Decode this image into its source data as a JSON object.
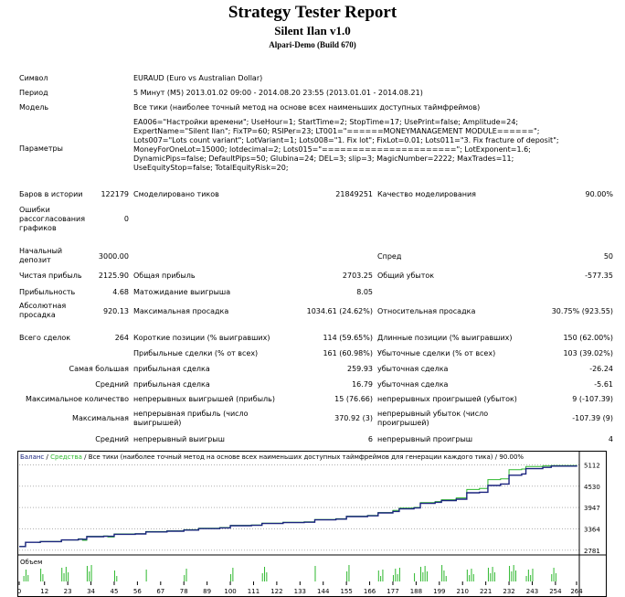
{
  "report": {
    "title": "Strategy Tester Report",
    "subtitle": "Silent Ilan v1.0",
    "build": "Alpari-Demo (Build 670)"
  },
  "info": {
    "symbol_label": "Символ",
    "symbol_value": "EURAUD (Euro vs Australian Dollar)",
    "period_label": "Период",
    "period_value": "5 Минут (M5) 2013.01.02 09:00 - 2014.08.20 23:55 (2013.01.01 - 2014.08.21)",
    "model_label": "Модель",
    "model_value": "Все тики (наиболее точный метод на основе всех наименьших доступных таймфреймов)",
    "params_label": "Параметры",
    "params_value": "EA006=\"Настройки времени\"; UseHour=1; StartTime=2; StopTime=17; UsePrint=false; Amplitude=24; ExpertName=\"Silent Ilan\"; FixTP=60; RSIPer=23; LT001=\"======MONEYMANAGEMENT MODULE======\"; Lots007=\"Lots count variant\"; LotVariant=1; Lots008=\"1. Fix lot\"; FixLot=0.01; Lots011=\"3. Fix fracture of deposit\"; MoneyForOneLot=15000; lotdecimal=2; Lots015=\"======================\"; LotExponent=1.6; DynamicPips=false; DefaultPips=50; Glubina=24; DEL=3; slip=3; MagicNumber=2222; MaxTrades=11; UseEquityStop=false; TotalEquityRisk=20;"
  },
  "stats": {
    "bars_label": "Баров в истории",
    "bars_value": "122179",
    "ticks_label": "Смоделировано тиков",
    "ticks_value": "21849251",
    "quality_label": "Качество моделирования",
    "quality_value": "90.00%",
    "errors_label": "Ошибки рассогласования графиков",
    "errors_value": "0",
    "deposit_label": "Начальный депозит",
    "deposit_value": "3000.00",
    "spread_label": "Спред",
    "spread_value": "50",
    "net_label": "Чистая прибыль",
    "net_value": "2125.90",
    "gross_profit_label": "Общая прибыль",
    "gross_profit_value": "2703.25",
    "gross_loss_label": "Общий убыток",
    "gross_loss_value": "-577.35",
    "pf_label": "Прибыльность",
    "pf_value": "4.68",
    "exp_label": "Матожидание выигрыша",
    "exp_value": "8.05",
    "abs_dd_label": "Абсолютная просадка",
    "abs_dd_value": "920.13",
    "max_dd_label": "Максимальная просадка",
    "max_dd_value": "1034.61 (24.62%)",
    "rel_dd_label": "Относительная просадка",
    "rel_dd_value": "30.75% (923.55)",
    "trades_label": "Всего сделок",
    "trades_value": "264",
    "short_label": "Короткие позиции (% выигравших)",
    "short_value": "114 (59.65%)",
    "long_label": "Длинные позиции (% выигравших)",
    "long_value": "150 (62.00%)",
    "profit_trades_label": "Прибыльные сделки (% от всех)",
    "profit_trades_value": "161 (60.98%)",
    "loss_trades_label": "Убыточные сделки (% от всех)",
    "loss_trades_value": "103 (39.02%)",
    "largest_label": "Самая большая",
    "largest_profit_label": "прибыльная сделка",
    "largest_profit_value": "259.93",
    "largest_loss_label": "убыточная сделка",
    "largest_loss_value": "-26.24",
    "average_label": "Средний",
    "avg_profit_label": "прибыльная сделка",
    "avg_profit_value": "16.79",
    "avg_loss_label": "убыточная сделка",
    "avg_loss_value": "-5.61",
    "max_count_label": "Максимальное количество",
    "cons_wins_label": "непрерывных выигрышей (прибыль)",
    "cons_wins_value": "15 (76.66)",
    "cons_losses_label": "непрерывных проигрышей (убыток)",
    "cons_losses_value": "9 (-107.39)",
    "maximal_label": "Максимальная",
    "cons_profit_label": "непрерывная прибыль (число выигрышей)",
    "cons_profit_value": "370.92 (3)",
    "cons_loss_label": "непрерывный убыток (число проигрышей)",
    "cons_loss_value": "-107.39 (9)",
    "avg2_label": "Средний",
    "avg_wins_label": "непрерывный выигрыш",
    "avg_wins_value": "6",
    "avg_losses_label": "непрерывный проигрыш",
    "avg_losses_value": "4"
  },
  "chart_data": {
    "type": "line",
    "header_balance": "Баланс",
    "header_equity": "Средства",
    "header_rest": "Все тики (наиболее точный метод на основе всех наименьших доступных таймфреймов для генерации каждого тика)",
    "header_quality": "90.00%",
    "volume_label": "Объем",
    "y_ticks": [
      "5112",
      "4530",
      "3947",
      "3364",
      "2781"
    ],
    "y_tick_values": [
      5112,
      4530,
      3947,
      3364,
      2781
    ],
    "ylim": [
      2700,
      5200
    ],
    "x_ticks": [
      "0",
      "12",
      "23",
      "34",
      "45",
      "56",
      "67",
      "78",
      "89",
      "100",
      "111",
      "122",
      "133",
      "144",
      "155",
      "166",
      "177",
      "188",
      "199",
      "210",
      "221",
      "232",
      "243",
      "254",
      "264"
    ],
    "xlim": [
      0,
      264
    ],
    "colors": {
      "balance": "#1a237e",
      "equity": "#2eb82e",
      "volume": "#2eb82e",
      "grid": "#b0b0b0"
    },
    "balance": [
      [
        0,
        2880
      ],
      [
        3,
        2995
      ],
      [
        10,
        3015
      ],
      [
        20,
        3060
      ],
      [
        28,
        3080
      ],
      [
        32,
        3150
      ],
      [
        40,
        3160
      ],
      [
        45,
        3215
      ],
      [
        55,
        3225
      ],
      [
        60,
        3280
      ],
      [
        70,
        3300
      ],
      [
        78,
        3330
      ],
      [
        85,
        3370
      ],
      [
        95,
        3390
      ],
      [
        100,
        3450
      ],
      [
        110,
        3460
      ],
      [
        115,
        3510
      ],
      [
        125,
        3535
      ],
      [
        135,
        3545
      ],
      [
        140,
        3610
      ],
      [
        150,
        3630
      ],
      [
        155,
        3700
      ],
      [
        165,
        3720
      ],
      [
        170,
        3800
      ],
      [
        177,
        3840
      ],
      [
        180,
        3910
      ],
      [
        187,
        3935
      ],
      [
        190,
        4060
      ],
      [
        197,
        4090
      ],
      [
        200,
        4135
      ],
      [
        207,
        4175
      ],
      [
        212,
        4350
      ],
      [
        218,
        4365
      ],
      [
        222,
        4550
      ],
      [
        228,
        4590
      ],
      [
        232,
        4830
      ],
      [
        238,
        4865
      ],
      [
        240,
        5010
      ],
      [
        248,
        5045
      ],
      [
        252,
        5080
      ],
      [
        264,
        5100
      ]
    ],
    "equity": [
      [
        0,
        2880
      ],
      [
        3,
        3000
      ],
      [
        9,
        2990
      ],
      [
        10,
        3020
      ],
      [
        20,
        3060
      ],
      [
        25,
        3060
      ],
      [
        28,
        3090
      ],
      [
        30,
        3050
      ],
      [
        32,
        3160
      ],
      [
        40,
        3170
      ],
      [
        42,
        3140
      ],
      [
        45,
        3225
      ],
      [
        55,
        3230
      ],
      [
        60,
        3290
      ],
      [
        70,
        3310
      ],
      [
        78,
        3340
      ],
      [
        85,
        3380
      ],
      [
        95,
        3400
      ],
      [
        100,
        3460
      ],
      [
        110,
        3470
      ],
      [
        115,
        3520
      ],
      [
        125,
        3545
      ],
      [
        135,
        3555
      ],
      [
        140,
        3620
      ],
      [
        150,
        3640
      ],
      [
        155,
        3710
      ],
      [
        165,
        3730
      ],
      [
        170,
        3810
      ],
      [
        177,
        3870
      ],
      [
        180,
        3930
      ],
      [
        187,
        3950
      ],
      [
        190,
        4080
      ],
      [
        197,
        4110
      ],
      [
        200,
        4160
      ],
      [
        207,
        4210
      ],
      [
        212,
        4440
      ],
      [
        218,
        4470
      ],
      [
        222,
        4710
      ],
      [
        228,
        4730
      ],
      [
        232,
        4980
      ],
      [
        238,
        5000
      ],
      [
        240,
        5070
      ],
      [
        248,
        5085
      ],
      [
        252,
        5095
      ],
      [
        264,
        5110
      ]
    ],
    "volume_x": [
      2,
      3,
      4,
      10,
      11,
      20,
      21,
      22,
      23,
      32,
      33,
      34,
      45,
      46,
      60,
      78,
      79,
      100,
      101,
      115,
      116,
      117,
      140,
      155,
      156,
      170,
      171,
      172,
      177,
      178,
      179,
      180,
      187,
      190,
      191,
      192,
      193,
      200,
      201,
      202,
      212,
      213,
      214,
      215,
      222,
      223,
      224,
      225,
      232,
      233,
      234,
      235,
      240,
      241,
      242,
      243,
      252,
      253,
      254
    ]
  }
}
